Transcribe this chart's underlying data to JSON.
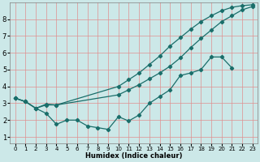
{
  "xlabel": "Humidex (Indice chaleur)",
  "bg_color": "#cce8e8",
  "line_color": "#1a6e6a",
  "grid_color": "#e09090",
  "xlim": [
    -0.5,
    23.5
  ],
  "ylim": [
    0.6,
    9.0
  ],
  "yticks": [
    1,
    2,
    3,
    4,
    5,
    6,
    7,
    8
  ],
  "xticks": [
    0,
    1,
    2,
    3,
    4,
    5,
    6,
    7,
    8,
    9,
    10,
    11,
    12,
    13,
    14,
    15,
    16,
    17,
    18,
    19,
    20,
    21,
    22,
    23
  ],
  "line1_x": [
    0,
    1,
    2,
    3,
    4,
    10,
    11,
    12,
    13,
    14,
    15,
    16,
    17,
    18,
    19,
    20,
    21,
    22,
    23
  ],
  "line1_y": [
    3.3,
    3.1,
    2.7,
    2.9,
    2.9,
    4.0,
    4.4,
    4.8,
    5.3,
    5.8,
    6.4,
    6.9,
    7.4,
    7.85,
    8.2,
    8.5,
    8.7,
    8.8,
    8.85
  ],
  "line2_x": [
    0,
    1,
    2,
    3,
    4,
    10,
    11,
    12,
    13,
    14,
    15,
    16,
    17,
    18,
    19,
    20,
    21,
    22,
    23
  ],
  "line2_y": [
    3.3,
    3.1,
    2.7,
    2.95,
    2.9,
    3.5,
    3.8,
    4.1,
    4.45,
    4.8,
    5.2,
    5.7,
    6.3,
    6.85,
    7.35,
    7.85,
    8.2,
    8.55,
    8.75
  ],
  "line3_x": [
    0,
    1,
    2,
    3,
    4,
    5,
    6,
    7,
    8,
    9,
    10,
    11,
    12,
    13,
    14,
    15,
    16,
    17,
    18,
    19,
    20,
    21
  ],
  "line3_y": [
    3.3,
    3.1,
    2.7,
    2.4,
    1.75,
    2.0,
    2.0,
    1.65,
    1.55,
    1.45,
    2.2,
    1.95,
    2.3,
    3.0,
    3.4,
    3.8,
    4.65,
    4.8,
    5.0,
    5.75,
    5.75,
    5.1
  ],
  "xlabel_fontsize": 6,
  "tick_fontsize_x": 5,
  "tick_fontsize_y": 6
}
